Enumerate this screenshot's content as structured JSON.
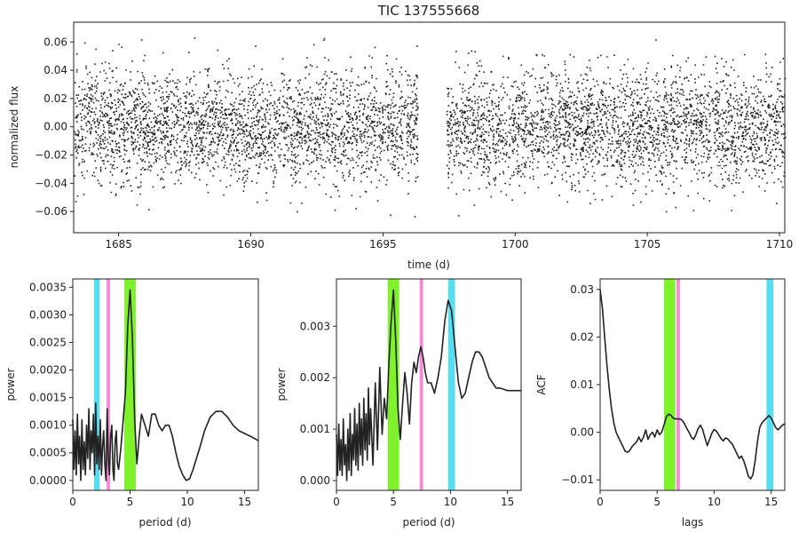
{
  "chart_data": [
    {
      "type": "scatter",
      "title": "TIC 137555668",
      "xlabel": "time (d)",
      "ylabel": "normalized flux",
      "xlim": [
        1683.3,
        1710.2
      ],
      "ylim": [
        -0.075,
        0.074
      ],
      "xticks": [
        1685,
        1690,
        1695,
        1700,
        1705,
        1710
      ],
      "xtick_labels": [
        "1685",
        "1690",
        "1695",
        "1700",
        "1705",
        "1710"
      ],
      "yticks": [
        -0.06,
        -0.04,
        -0.02,
        0.0,
        0.02,
        0.04,
        0.06
      ],
      "ytick_labels": [
        "−0.06",
        "−0.04",
        "−0.02",
        "0.00",
        "0.02",
        "0.04",
        "0.06"
      ],
      "segments": [
        [
          1683.3,
          1696.3
        ],
        [
          1697.4,
          1710.2
        ]
      ],
      "flux_sigma": 0.02,
      "flux_max_abs": 0.068,
      "point_color": "#222222"
    },
    {
      "type": "line",
      "xlabel": "period (d)",
      "ylabel": "power",
      "xlim": [
        0,
        16.2
      ],
      "ylim": [
        -0.00018,
        0.00365
      ],
      "xticks": [
        0,
        5,
        10,
        15
      ],
      "xtick_labels": [
        "0",
        "5",
        "10",
        "15"
      ],
      "yticks": [
        0,
        0.0005,
        0.001,
        0.0015,
        0.002,
        0.0025,
        0.003,
        0.0035
      ],
      "ytick_labels": [
        "0.0000",
        "0.0005",
        "0.0010",
        "0.0015",
        "0.0020",
        "0.0025",
        "0.0030",
        "0.0035"
      ],
      "bands": [
        {
          "x0": 1.85,
          "x1": 2.35,
          "color": "#55ddf2"
        },
        {
          "x0": 2.95,
          "x1": 3.25,
          "color": "#f58ad8"
        },
        {
          "x0": 4.5,
          "x1": 5.5,
          "color": "#7ff22c"
        }
      ],
      "x": [
        0,
        0.1,
        0.2,
        0.3,
        0.4,
        0.5,
        0.6,
        0.7,
        0.8,
        0.9,
        1.0,
        1.1,
        1.2,
        1.3,
        1.4,
        1.5,
        1.6,
        1.7,
        1.8,
        1.9,
        2.0,
        2.1,
        2.2,
        2.3,
        2.4,
        2.5,
        2.6,
        2.7,
        2.8,
        2.9,
        3.0,
        3.1,
        3.2,
        3.3,
        3.4,
        3.5,
        3.6,
        3.7,
        3.8,
        3.9,
        4.0,
        4.2,
        4.4,
        4.6,
        4.8,
        5.0,
        5.2,
        5.4,
        5.6,
        5.8,
        6.0,
        6.3,
        6.6,
        6.9,
        7.2,
        7.5,
        7.8,
        8.1,
        8.4,
        8.7,
        9.0,
        9.3,
        9.6,
        9.9,
        10.2,
        10.5,
        10.8,
        11.1,
        11.5,
        12.0,
        12.5,
        13.0,
        13.5,
        14.0,
        14.5,
        15.0,
        15.5,
        16.2
      ],
      "values": [
        0.0011,
        0.0002,
        0.0009,
        0.0001,
        0.0012,
        0.0003,
        0.0008,
        0.0,
        0.0011,
        0.0002,
        0.0007,
        0.0001,
        0.001,
        0.0004,
        0.0013,
        0.0002,
        0.0009,
        0.0005,
        0.0012,
        0.0001,
        0.0014,
        0.0003,
        0.0008,
        0.0002,
        0.0011,
        0.0001,
        0.0006,
        0.0009,
        0.0003,
        0.0,
        0.0013,
        0.0004,
        0.0001,
        0.0008,
        0.001,
        0.0002,
        0.0,
        0.0007,
        0.0009,
        0.0003,
        0.0002,
        0.0006,
        0.0011,
        0.0016,
        0.0028,
        0.00345,
        0.0026,
        0.0011,
        0.0003,
        0.0008,
        0.0012,
        0.001,
        0.0008,
        0.0012,
        0.0012,
        0.001,
        0.0009,
        0.001,
        0.001,
        0.0008,
        0.0005,
        0.00025,
        0.0001,
        0.0,
        3e-05,
        0.0002,
        0.0004,
        0.0006,
        0.0009,
        0.00115,
        0.00125,
        0.00125,
        0.00115,
        0.001,
        0.0009,
        0.00085,
        0.0008,
        0.00072
      ]
    },
    {
      "type": "line",
      "xlabel": "period (d)",
      "ylabel": "power",
      "xlim": [
        0,
        16.2
      ],
      "ylim": [
        -0.00019,
        0.00392
      ],
      "xticks": [
        0,
        5,
        10,
        15
      ],
      "xtick_labels": [
        "0",
        "5",
        "10",
        "15"
      ],
      "yticks": [
        0,
        0.001,
        0.002,
        0.003
      ],
      "ytick_labels": [
        "0.000",
        "0.001",
        "0.002",
        "0.003"
      ],
      "bands": [
        {
          "x0": 4.5,
          "x1": 5.5,
          "color": "#7ff22c"
        },
        {
          "x0": 7.3,
          "x1": 7.6,
          "color": "#f58ad8"
        },
        {
          "x0": 9.8,
          "x1": 10.4,
          "color": "#55ddf2"
        }
      ],
      "x": [
        0,
        0.1,
        0.2,
        0.3,
        0.4,
        0.5,
        0.6,
        0.7,
        0.8,
        0.9,
        1.0,
        1.1,
        1.2,
        1.3,
        1.4,
        1.5,
        1.6,
        1.7,
        1.8,
        1.9,
        2.0,
        2.1,
        2.2,
        2.3,
        2.4,
        2.5,
        2.6,
        2.7,
        2.8,
        2.9,
        3.0,
        3.2,
        3.4,
        3.6,
        3.8,
        4.0,
        4.2,
        4.4,
        4.6,
        4.8,
        5.0,
        5.2,
        5.4,
        5.6,
        5.8,
        6.0,
        6.2,
        6.4,
        6.6,
        6.8,
        7.0,
        7.2,
        7.4,
        7.6,
        7.8,
        8.0,
        8.3,
        8.6,
        8.9,
        9.2,
        9.5,
        9.8,
        10.1,
        10.4,
        10.7,
        11.0,
        11.3,
        11.6,
        11.9,
        12.2,
        12.5,
        12.8,
        13.1,
        13.4,
        13.7,
        14.0,
        14.3,
        14.6,
        15.0,
        15.4,
        15.8,
        16.2
      ],
      "values": [
        0.0009,
        0.0001,
        0.0011,
        0.0002,
        0.0008,
        0.0001,
        0.0012,
        0.0003,
        0.0007,
        0.0,
        0.001,
        0.0002,
        0.0013,
        0.0001,
        0.0009,
        0.0004,
        0.0014,
        0.0003,
        0.0011,
        0.0002,
        0.0015,
        0.0005,
        0.0012,
        0.0003,
        0.0016,
        0.0006,
        0.0013,
        0.0004,
        0.0018,
        0.0007,
        0.0014,
        0.0003,
        0.0019,
        0.0006,
        0.0022,
        0.0009,
        0.0016,
        0.0012,
        0.0023,
        0.0031,
        0.0037,
        0.0027,
        0.0014,
        0.0008,
        0.0015,
        0.0021,
        0.0017,
        0.0011,
        0.0019,
        0.0023,
        0.0021,
        0.0024,
        0.0026,
        0.0024,
        0.0021,
        0.0019,
        0.0019,
        0.0017,
        0.002,
        0.0024,
        0.0031,
        0.0035,
        0.0033,
        0.0026,
        0.0019,
        0.0016,
        0.0017,
        0.002,
        0.0023,
        0.0025,
        0.0025,
        0.0024,
        0.0022,
        0.002,
        0.0019,
        0.0018,
        0.0018,
        0.00178,
        0.00175,
        0.00175,
        0.00175,
        0.00175
      ]
    },
    {
      "type": "line",
      "xlabel": "lags",
      "ylabel": "ACF",
      "xlim": [
        0,
        16.2
      ],
      "ylim": [
        -0.0122,
        0.0322
      ],
      "xticks": [
        0,
        5,
        10,
        15
      ],
      "xtick_labels": [
        "0",
        "5",
        "10",
        "15"
      ],
      "yticks": [
        -0.01,
        0.0,
        0.01,
        0.02,
        0.03
      ],
      "ytick_labels": [
        "−0.01",
        "0.00",
        "0.01",
        "0.02",
        "0.03"
      ],
      "bands": [
        {
          "x0": 5.6,
          "x1": 6.6,
          "color": "#7ff22c"
        },
        {
          "x0": 6.7,
          "x1": 7.0,
          "color": "#f58ad8"
        },
        {
          "x0": 14.6,
          "x1": 15.2,
          "color": "#55ddf2"
        }
      ],
      "x": [
        0,
        0.2,
        0.4,
        0.6,
        0.8,
        1.0,
        1.2,
        1.4,
        1.6,
        1.8,
        2.0,
        2.2,
        2.4,
        2.6,
        2.8,
        3.0,
        3.2,
        3.4,
        3.6,
        3.8,
        4.0,
        4.2,
        4.4,
        4.6,
        4.8,
        5.0,
        5.2,
        5.4,
        5.6,
        5.8,
        6.0,
        6.2,
        6.4,
        6.6,
        6.8,
        7.0,
        7.2,
        7.4,
        7.6,
        7.8,
        8.0,
        8.2,
        8.4,
        8.6,
        8.8,
        9.0,
        9.2,
        9.4,
        9.6,
        9.8,
        10.0,
        10.2,
        10.4,
        10.6,
        10.8,
        11.0,
        11.2,
        11.4,
        11.6,
        11.8,
        12.0,
        12.2,
        12.4,
        12.6,
        12.8,
        13.0,
        13.2,
        13.4,
        13.6,
        13.8,
        14.0,
        14.2,
        14.4,
        14.6,
        14.8,
        15.0,
        15.2,
        15.4,
        15.6,
        15.8,
        16.0,
        16.2
      ],
      "values": [
        0.03,
        0.026,
        0.02,
        0.014,
        0.009,
        0.005,
        0.002,
        0.0,
        -0.001,
        -0.002,
        -0.003,
        -0.004,
        -0.0042,
        -0.0038,
        -0.003,
        -0.0025,
        -0.002,
        -0.001,
        -0.002,
        -0.001,
        0.0005,
        -0.0015,
        -0.0005,
        0.0,
        -0.001,
        0.0005,
        -0.0005,
        0.0,
        0.0015,
        0.0032,
        0.0038,
        0.0036,
        0.003,
        0.0028,
        0.0028,
        0.0028,
        0.0025,
        0.0018,
        0.0008,
        0.0,
        -0.001,
        -0.0015,
        -0.0005,
        0.0008,
        0.0015,
        0.0005,
        -0.0012,
        -0.0028,
        -0.0015,
        -0.0002,
        0.0006,
        0.0002,
        -0.0005,
        -0.0013,
        -0.0018,
        -0.0012,
        -0.0014,
        -0.002,
        -0.0025,
        -0.0035,
        -0.0045,
        -0.0055,
        -0.005,
        -0.006,
        -0.0075,
        -0.0092,
        -0.0098,
        -0.009,
        -0.006,
        -0.002,
        0.001,
        0.002,
        0.0025,
        0.003,
        0.0035,
        0.003,
        0.002,
        0.001,
        0.0005,
        0.001,
        0.0015,
        0.0018
      ]
    }
  ]
}
